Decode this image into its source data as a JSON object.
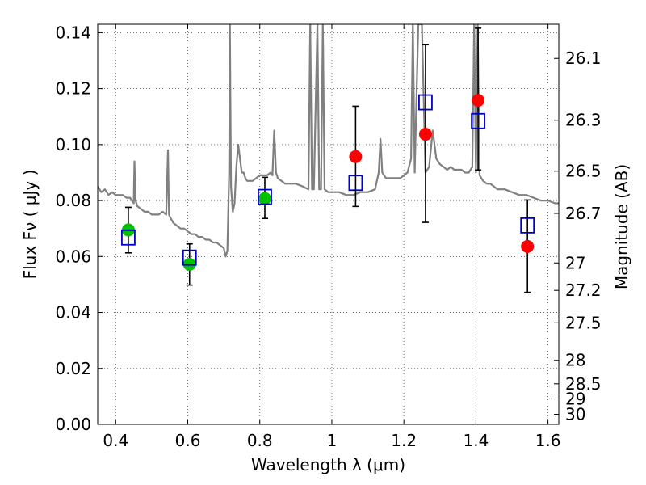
{
  "chart_data": {
    "type": "scatter",
    "xlabel": "Wavelength  λ (μm)",
    "ylabel": "Flux  Fν  ( μJy )",
    "ylabel_right": "Magnitude (AB)",
    "xlim": [
      0.35,
      1.63
    ],
    "ylim": [
      0.0,
      0.143
    ],
    "grid": true,
    "x_ticks": [
      0.4,
      0.6,
      0.8,
      1.0,
      1.2,
      1.4,
      1.6
    ],
    "x_tick_labels": [
      "0.4",
      "0.6",
      "0.8",
      "1",
      "1.2",
      "1.4",
      "1.6"
    ],
    "y_ticks": [
      0.0,
      0.02,
      0.04,
      0.06,
      0.08,
      0.1,
      0.12,
      0.14
    ],
    "y_tick_labels": [
      "0.00",
      "0.02",
      "0.04",
      "0.06",
      "0.08",
      "0.10",
      "0.12",
      "0.14"
    ],
    "right_ticks": [
      {
        "label": "26.1",
        "flux": 0.1308
      },
      {
        "label": "26.3",
        "flux": 0.1087
      },
      {
        "label": "26.5",
        "flux": 0.0905
      },
      {
        "label": "26.7",
        "flux": 0.0754
      },
      {
        "label": "27",
        "flux": 0.0577
      },
      {
        "label": "27.2",
        "flux": 0.0479
      },
      {
        "label": "27.5",
        "flux": 0.0363
      },
      {
        "label": "28",
        "flux": 0.0229
      },
      {
        "label": "28.5",
        "flux": 0.0145
      },
      {
        "label": "29",
        "flux": 0.0091
      },
      {
        "label": "30",
        "flux": 0.0036
      }
    ],
    "series": [
      {
        "marker": "circle",
        "color": "#00c000",
        "points": [
          {
            "x": 0.435,
            "y": 0.0695
          },
          {
            "x": 0.605,
            "y": 0.0572
          },
          {
            "x": 0.814,
            "y": 0.0807
          }
        ]
      },
      {
        "marker": "circle",
        "color": "#ff0000",
        "points": [
          {
            "x": 1.066,
            "y": 0.0957
          },
          {
            "x": 1.26,
            "y": 0.1037
          },
          {
            "x": 1.406,
            "y": 0.1158
          },
          {
            "x": 1.543,
            "y": 0.0636
          }
        ]
      },
      {
        "marker": "open-square",
        "color": "#0000cc",
        "points": [
          {
            "x": 0.435,
            "y": 0.0668,
            "yerr_low": 0.0613,
            "yerr_high": 0.0776
          },
          {
            "x": 0.605,
            "y": 0.0596,
            "yerr_low": 0.0498,
            "yerr_high": 0.0645
          },
          {
            "x": 0.814,
            "y": 0.0813,
            "yerr_low": 0.0736,
            "yerr_high": 0.0883
          },
          {
            "x": 1.066,
            "y": 0.0863,
            "yerr_low": 0.0779,
            "yerr_high": 0.1137
          },
          {
            "x": 1.26,
            "y": 0.1151,
            "yerr_low": 0.0722,
            "yerr_high": 0.1357
          },
          {
            "x": 1.406,
            "y": 0.1084,
            "yerr_low": 0.0909,
            "yerr_high": 0.1416
          },
          {
            "x": 1.543,
            "y": 0.0711,
            "yerr_low": 0.0472,
            "yerr_high": 0.0802
          }
        ]
      },
      {
        "type": "line",
        "color": "#808080",
        "x": [
          0.35,
          0.36,
          0.37,
          0.38,
          0.39,
          0.4,
          0.41,
          0.42,
          0.43,
          0.44,
          0.445,
          0.45,
          0.452,
          0.455,
          0.46,
          0.47,
          0.48,
          0.49,
          0.5,
          0.51,
          0.52,
          0.53,
          0.54,
          0.545,
          0.548,
          0.551,
          0.56,
          0.57,
          0.58,
          0.59,
          0.6,
          0.61,
          0.62,
          0.63,
          0.64,
          0.65,
          0.66,
          0.67,
          0.68,
          0.69,
          0.7,
          0.705,
          0.71,
          0.715,
          0.717,
          0.72,
          0.725,
          0.73,
          0.735,
          0.74,
          0.745,
          0.75,
          0.755,
          0.76,
          0.765,
          0.77,
          0.78,
          0.79,
          0.8,
          0.81,
          0.82,
          0.83,
          0.835,
          0.84,
          0.845,
          0.85,
          0.86,
          0.87,
          0.88,
          0.9,
          0.92,
          0.935,
          0.94,
          0.945,
          0.95,
          0.96,
          0.965,
          0.97,
          0.975,
          0.98,
          0.99,
          1.0,
          1.02,
          1.04,
          1.06,
          1.08,
          1.1,
          1.12,
          1.13,
          1.135,
          1.14,
          1.15,
          1.17,
          1.19,
          1.2,
          1.21,
          1.22,
          1.225,
          1.23,
          1.24,
          1.25,
          1.26,
          1.27,
          1.28,
          1.29,
          1.3,
          1.31,
          1.32,
          1.33,
          1.34,
          1.35,
          1.36,
          1.37,
          1.38,
          1.39,
          1.395,
          1.4,
          1.405,
          1.41,
          1.42,
          1.43,
          1.44,
          1.45,
          1.46,
          1.48,
          1.5,
          1.52,
          1.54,
          1.56,
          1.58,
          1.6,
          1.62,
          1.63
        ],
        "y": [
          0.085,
          0.083,
          0.084,
          0.082,
          0.083,
          0.082,
          0.082,
          0.082,
          0.081,
          0.081,
          0.08,
          0.079,
          0.094,
          0.08,
          0.078,
          0.077,
          0.076,
          0.076,
          0.075,
          0.075,
          0.075,
          0.076,
          0.075,
          0.098,
          0.075,
          0.074,
          0.072,
          0.071,
          0.07,
          0.07,
          0.069,
          0.068,
          0.068,
          0.067,
          0.067,
          0.066,
          0.066,
          0.065,
          0.065,
          0.064,
          0.063,
          0.06,
          0.062,
          0.09,
          0.143,
          0.085,
          0.076,
          0.079,
          0.092,
          0.1,
          0.095,
          0.09,
          0.09,
          0.088,
          0.087,
          0.087,
          0.087,
          0.088,
          0.089,
          0.089,
          0.089,
          0.09,
          0.089,
          0.105,
          0.09,
          0.088,
          0.087,
          0.086,
          0.086,
          0.086,
          0.085,
          0.084,
          0.143,
          0.084,
          0.084,
          0.143,
          0.084,
          0.084,
          0.143,
          0.084,
          0.083,
          0.083,
          0.083,
          0.082,
          0.082,
          0.083,
          0.083,
          0.084,
          0.09,
          0.102,
          0.09,
          0.088,
          0.088,
          0.088,
          0.089,
          0.09,
          0.095,
          0.143,
          0.09,
          0.143,
          0.143,
          0.09,
          0.092,
          0.105,
          0.095,
          0.093,
          0.092,
          0.091,
          0.092,
          0.091,
          0.091,
          0.091,
          0.09,
          0.09,
          0.092,
          0.143,
          0.09,
          0.143,
          0.089,
          0.087,
          0.086,
          0.086,
          0.085,
          0.084,
          0.084,
          0.083,
          0.082,
          0.082,
          0.081,
          0.08,
          0.08,
          0.079,
          0.079
        ]
      }
    ]
  }
}
